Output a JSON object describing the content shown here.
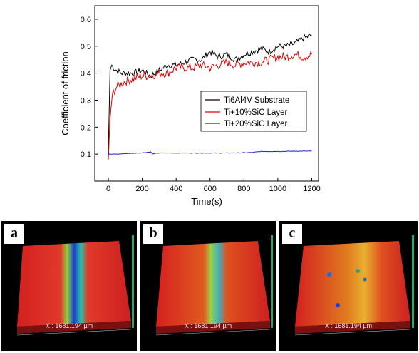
{
  "chart_data": {
    "type": "line",
    "xlabel": "Time(s)",
    "ylabel": "Coefficient of friction",
    "xlim": [
      -80,
      1240
    ],
    "ylim": [
      0.0,
      0.65
    ],
    "xticks": [
      0,
      200,
      400,
      600,
      800,
      1000,
      1200
    ],
    "yticks": [
      0.1,
      0.2,
      0.3,
      0.4,
      0.5,
      0.6
    ],
    "grid": false,
    "legend_position": "center-right",
    "series": [
      {
        "name": "Ti6Al4V Substrate",
        "color": "#000000",
        "x": [
          0,
          10,
          20,
          30,
          50,
          75,
          100,
          150,
          200,
          250,
          300,
          350,
          400,
          450,
          500,
          550,
          600,
          650,
          700,
          750,
          800,
          850,
          900,
          950,
          1000,
          1050,
          1100,
          1150,
          1200
        ],
        "y": [
          0.11,
          0.41,
          0.43,
          0.42,
          0.41,
          0.4,
          0.4,
          0.4,
          0.41,
          0.39,
          0.41,
          0.43,
          0.43,
          0.44,
          0.45,
          0.45,
          0.48,
          0.46,
          0.47,
          0.45,
          0.47,
          0.48,
          0.49,
          0.48,
          0.5,
          0.5,
          0.51,
          0.53,
          0.54
        ]
      },
      {
        "name": "Ti+10%SiC Layer",
        "color": "#e00000",
        "x": [
          0,
          10,
          20,
          30,
          50,
          75,
          100,
          150,
          200,
          250,
          300,
          350,
          400,
          450,
          500,
          550,
          600,
          650,
          700,
          750,
          800,
          850,
          900,
          950,
          1000,
          1050,
          1100,
          1150,
          1200
        ],
        "y": [
          0.08,
          0.23,
          0.3,
          0.33,
          0.35,
          0.36,
          0.37,
          0.38,
          0.39,
          0.39,
          0.4,
          0.4,
          0.42,
          0.42,
          0.42,
          0.43,
          0.42,
          0.43,
          0.44,
          0.43,
          0.44,
          0.44,
          0.44,
          0.45,
          0.46,
          0.46,
          0.47,
          0.46,
          0.47
        ]
      },
      {
        "name": "Ti+20%SiC Layer",
        "color": "#2020c8",
        "x": [
          0,
          5,
          10,
          20,
          50,
          100,
          150,
          200,
          250,
          260,
          270,
          300,
          400,
          500,
          600,
          700,
          800,
          850,
          900,
          1000,
          1100,
          1200
        ],
        "y": [
          0.11,
          0.1,
          0.1,
          0.1,
          0.1,
          0.102,
          0.103,
          0.105,
          0.108,
          0.1,
          0.102,
          0.104,
          0.104,
          0.104,
          0.104,
          0.104,
          0.105,
          0.106,
          0.11,
          0.11,
          0.111,
          0.111
        ]
      }
    ]
  },
  "panels": [
    {
      "tag": "a",
      "caption": "X : 1681.194 µm"
    },
    {
      "tag": "b",
      "caption": "X : 1681.194 µm"
    },
    {
      "tag": "c",
      "caption": "X : 1681.194 µm"
    }
  ]
}
